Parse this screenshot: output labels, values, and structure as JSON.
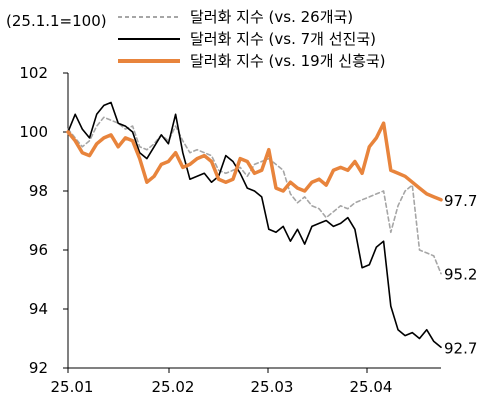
{
  "chart_data": {
    "type": "line",
    "unit_label": "(25.1.1=100)",
    "x_ticks": [
      "25.01",
      "25.02",
      "25.03",
      "25.04"
    ],
    "ylim": [
      92,
      102
    ],
    "y_ticks": [
      "102",
      "100",
      "98",
      "96",
      "94",
      "92"
    ],
    "legend_position": "top",
    "grid": false,
    "series": [
      {
        "name": "달러화 지수 (vs. 26개국)",
        "color": "#a6a6a6",
        "style": "dashed",
        "end_label": "95.2",
        "values": [
          100.1,
          99.8,
          99.5,
          99.7,
          100.2,
          100.5,
          100.4,
          100.3,
          100.1,
          100.2,
          99.5,
          99.4,
          99.6,
          99.9,
          99.7,
          100.2,
          99.7,
          99.3,
          99.4,
          99.3,
          99.2,
          98.7,
          98.6,
          98.7,
          98.8,
          98.5,
          98.9,
          99.0,
          99.1,
          98.9,
          98.7,
          97.9,
          97.6,
          97.8,
          97.5,
          97.4,
          97.1,
          97.3,
          97.5,
          97.4,
          97.6,
          97.7,
          97.8,
          97.9,
          98.0,
          96.6,
          97.5,
          98.0,
          98.2,
          96.0,
          95.9,
          95.8,
          95.2
        ]
      },
      {
        "name": "달러화 지수 (vs. 7개 선진국)",
        "color": "#000000",
        "style": "solid",
        "end_label": "92.7",
        "values": [
          100.0,
          100.6,
          100.1,
          99.8,
          100.6,
          100.9,
          101.0,
          100.3,
          100.2,
          100.0,
          99.3,
          99.1,
          99.5,
          99.9,
          99.6,
          100.6,
          99.3,
          98.4,
          98.5,
          98.6,
          98.3,
          98.5,
          99.2,
          99.0,
          98.6,
          98.1,
          98.0,
          97.8,
          96.7,
          96.6,
          96.8,
          96.3,
          96.7,
          96.2,
          96.8,
          96.9,
          97.0,
          96.8,
          96.9,
          97.1,
          96.7,
          95.4,
          95.5,
          96.1,
          96.3,
          94.1,
          93.3,
          93.1,
          93.2,
          93.0,
          93.3,
          92.9,
          92.7
        ]
      },
      {
        "name": "달러화 지수 (vs. 19개 신흥국)",
        "color": "#e8843c",
        "style": "solid",
        "end_label": "97.7",
        "values": [
          100.0,
          99.7,
          99.3,
          99.2,
          99.6,
          99.8,
          99.9,
          99.5,
          99.8,
          99.7,
          99.1,
          98.3,
          98.5,
          98.9,
          99.0,
          99.3,
          98.8,
          98.9,
          99.1,
          99.2,
          99.0,
          98.4,
          98.3,
          98.4,
          99.1,
          99.0,
          98.6,
          98.7,
          99.4,
          98.1,
          98.0,
          98.3,
          98.1,
          98.0,
          98.3,
          98.4,
          98.2,
          98.7,
          98.8,
          98.7,
          99.0,
          98.6,
          99.5,
          99.8,
          100.3,
          98.7,
          98.6,
          98.5,
          98.3,
          98.1,
          97.9,
          97.8,
          97.7
        ]
      }
    ]
  }
}
